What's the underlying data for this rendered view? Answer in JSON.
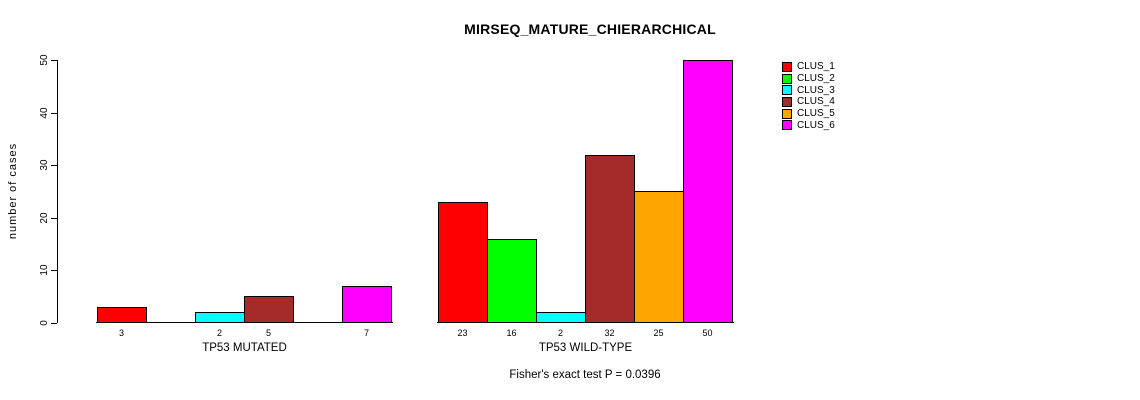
{
  "chart_data": {
    "type": "bar",
    "title": "MIRSEQ_MATURE_CHIERARCHICAL",
    "ylabel": "number of cases",
    "ylim": [
      0,
      50
    ],
    "yticks": [
      0,
      10,
      20,
      30,
      40,
      50
    ],
    "grid": false,
    "legend_position": "right-top",
    "categories": [
      "TP53 MUTATED",
      "TP53 WILD-TYPE"
    ],
    "series": [
      {
        "name": "CLUS_1",
        "color": "#ff0000",
        "values": [
          3,
          23
        ]
      },
      {
        "name": "CLUS_2",
        "color": "#00ff00",
        "values": [
          0,
          16
        ]
      },
      {
        "name": "CLUS_3",
        "color": "#00ffff",
        "values": [
          2,
          2
        ]
      },
      {
        "name": "CLUS_4",
        "color": "#a52a2a",
        "values": [
          5,
          32
        ]
      },
      {
        "name": "CLUS_5",
        "color": "#ffa500",
        "values": [
          0,
          25
        ]
      },
      {
        "name": "CLUS_6",
        "color": "#ff00ff",
        "values": [
          7,
          50
        ]
      }
    ],
    "bar_value_labels": {
      "TP53 MUTATED": [
        3,
        2,
        5,
        7
      ],
      "TP53 WILD-TYPE": [
        23,
        16,
        2,
        32,
        25,
        50
      ]
    },
    "annotation": "Fisher's exact test P = 0.0396"
  }
}
